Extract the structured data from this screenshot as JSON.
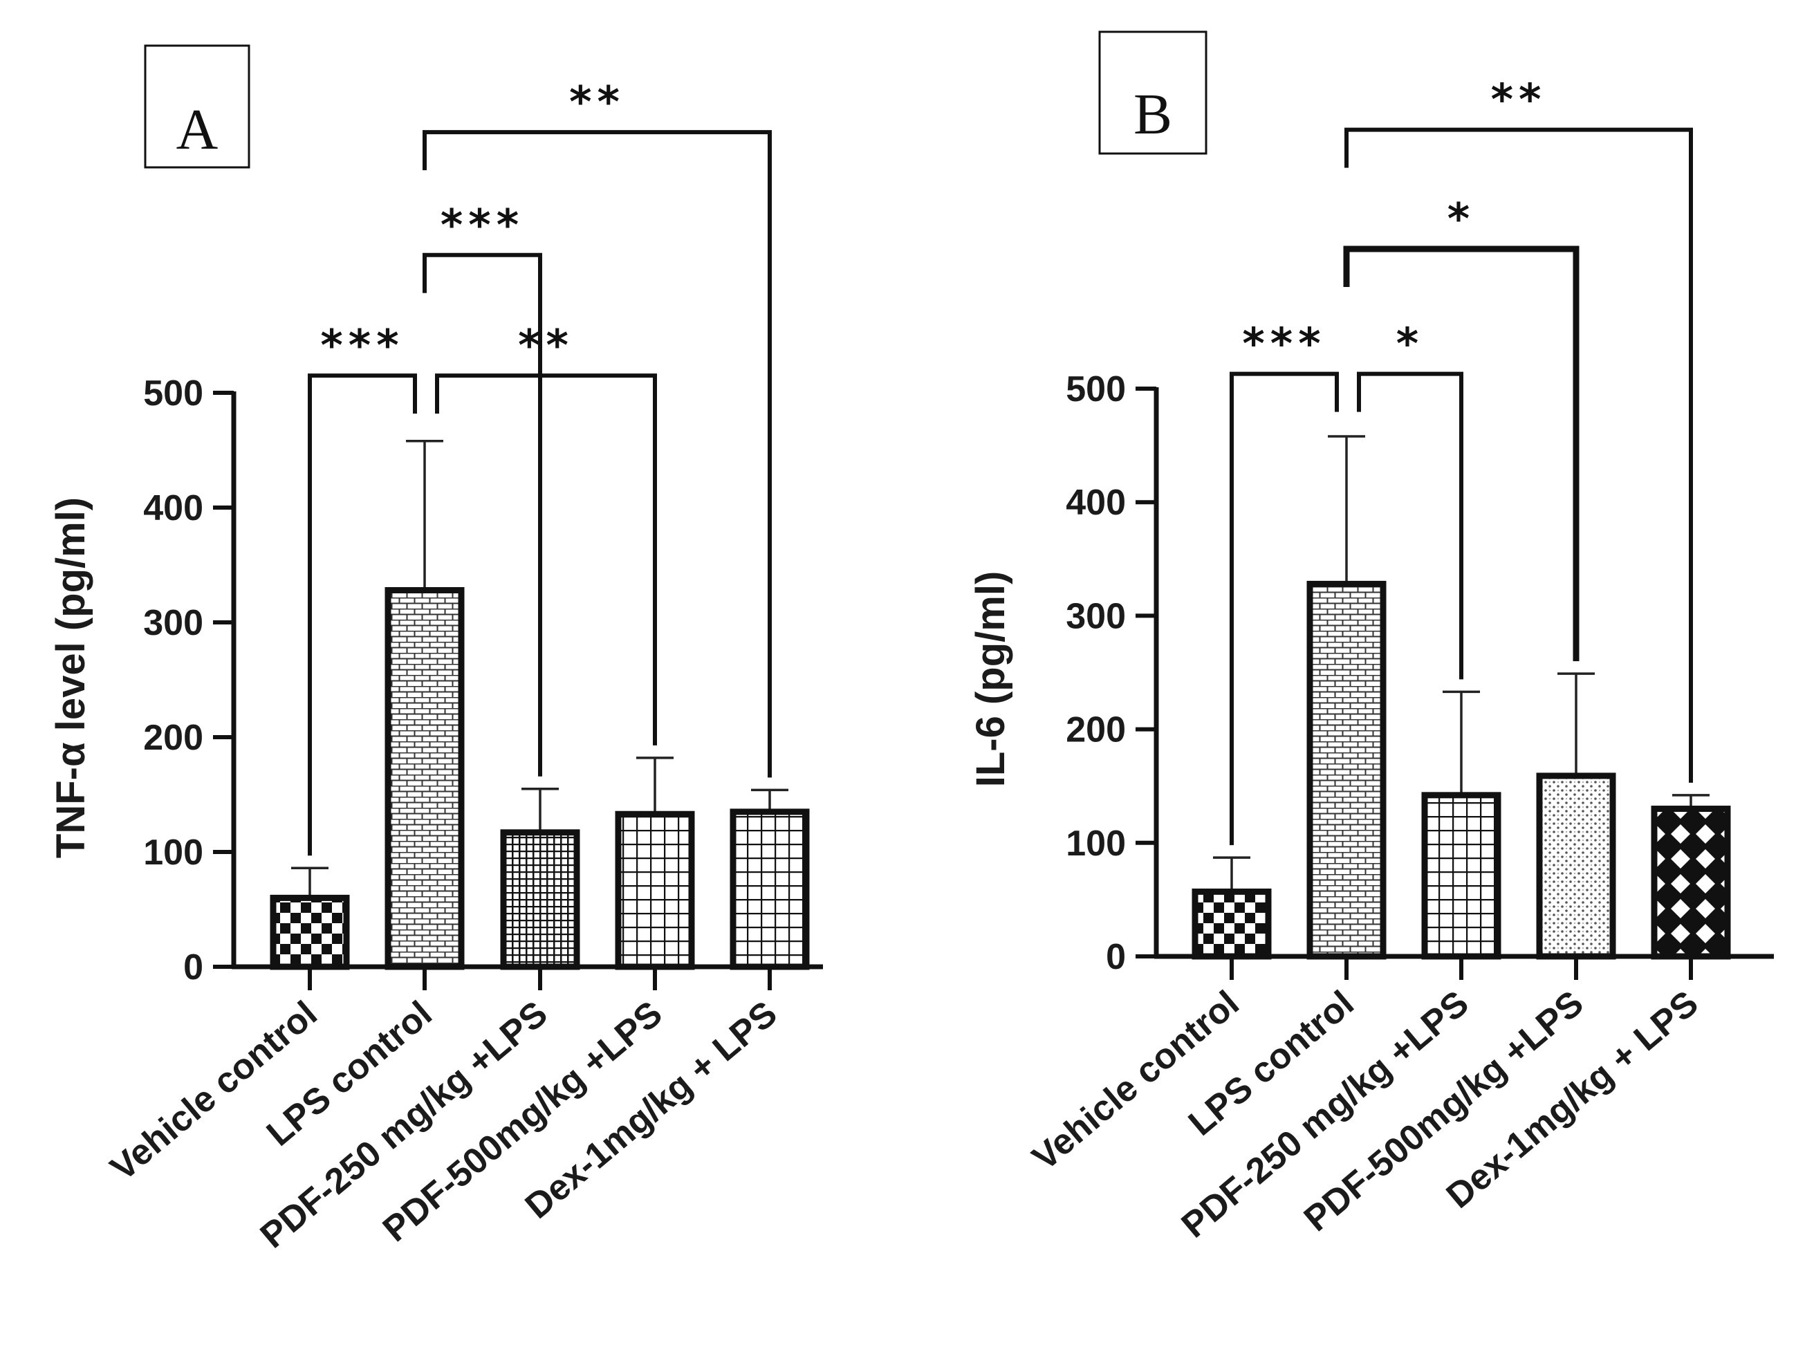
{
  "colors": {
    "ink": "#111111",
    "bar_fill": "#ffffff"
  },
  "chart_data": [
    {
      "panel_label": "A",
      "type": "bar",
      "title": "",
      "ylabel": "TNF-α level (pg/ml)",
      "xlabel": "",
      "ylim": [
        0,
        500
      ],
      "yticks": [
        "0",
        "100",
        "200",
        "300",
        "400",
        "500"
      ],
      "categories": [
        "Vehicle control",
        "LPS control",
        "PDF-250 mg/kg +LPS",
        "PDF-500mg/kg +LPS",
        "Dex-1mg/kg + LPS"
      ],
      "values": [
        60,
        328,
        117,
        133,
        135
      ],
      "error": [
        26,
        130,
        38,
        49,
        19
      ],
      "patterns": [
        "checker",
        "brick",
        "dense-grid",
        "grid",
        "grid"
      ],
      "significance": [
        {
          "from": 0,
          "to": 1,
          "label": "***",
          "level": 515
        },
        {
          "from": 1,
          "to": 3,
          "label": "**",
          "level": 515
        },
        {
          "from": 1,
          "to": 2,
          "label": "***",
          "level": 620
        },
        {
          "from": 1,
          "to": 4,
          "label": "**",
          "level": 727
        }
      ]
    },
    {
      "panel_label": "B",
      "type": "bar",
      "title": "",
      "ylabel": "IL-6 (pg/ml)",
      "xlabel": "",
      "ylim": [
        0,
        500
      ],
      "yticks": [
        "0",
        "100",
        "200",
        "300",
        "400",
        "500"
      ],
      "categories": [
        "Vehicle control",
        "LPS control",
        "PDF-250 mg/kg +LPS",
        "PDF-500mg/kg +LPS",
        "Dex-1mg/kg + LPS"
      ],
      "values": [
        57,
        328,
        142,
        159,
        130
      ],
      "error": [
        30,
        130,
        91,
        90,
        12
      ],
      "patterns": [
        "checker",
        "brick",
        "grid",
        "dots",
        "diamond"
      ],
      "significance": [
        {
          "from": 0,
          "to": 1,
          "label": "***",
          "level": 513
        },
        {
          "from": 1,
          "to": 2,
          "label": "*",
          "level": 513
        },
        {
          "from": 1,
          "to": 3,
          "label": "*",
          "level": 623
        },
        {
          "from": 1,
          "to": 4,
          "label": "**",
          "level": 728
        }
      ]
    }
  ]
}
